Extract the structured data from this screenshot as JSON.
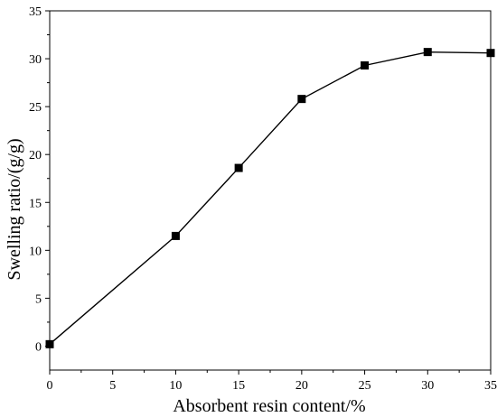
{
  "chart_data": {
    "type": "line",
    "title": "",
    "xlabel": "Absorbent resin content/%",
    "ylabel": "Swelling ratio/(g/g)",
    "xlim": [
      0,
      35
    ],
    "ylim": [
      -2.5,
      35
    ],
    "xticks": [
      0,
      5,
      10,
      15,
      20,
      25,
      30,
      35
    ],
    "yticks": [
      0,
      5,
      10,
      15,
      20,
      25,
      30,
      35
    ],
    "grid": false,
    "legend": "none",
    "marker": "square",
    "colors": {
      "line": "#000000",
      "marker": "#000000",
      "axis": "#000000"
    },
    "series": [
      {
        "x": [
          0,
          10,
          15,
          20,
          25,
          30,
          35
        ],
        "values": [
          0.2,
          11.5,
          18.6,
          25.8,
          29.3,
          30.7,
          30.6
        ]
      }
    ]
  }
}
